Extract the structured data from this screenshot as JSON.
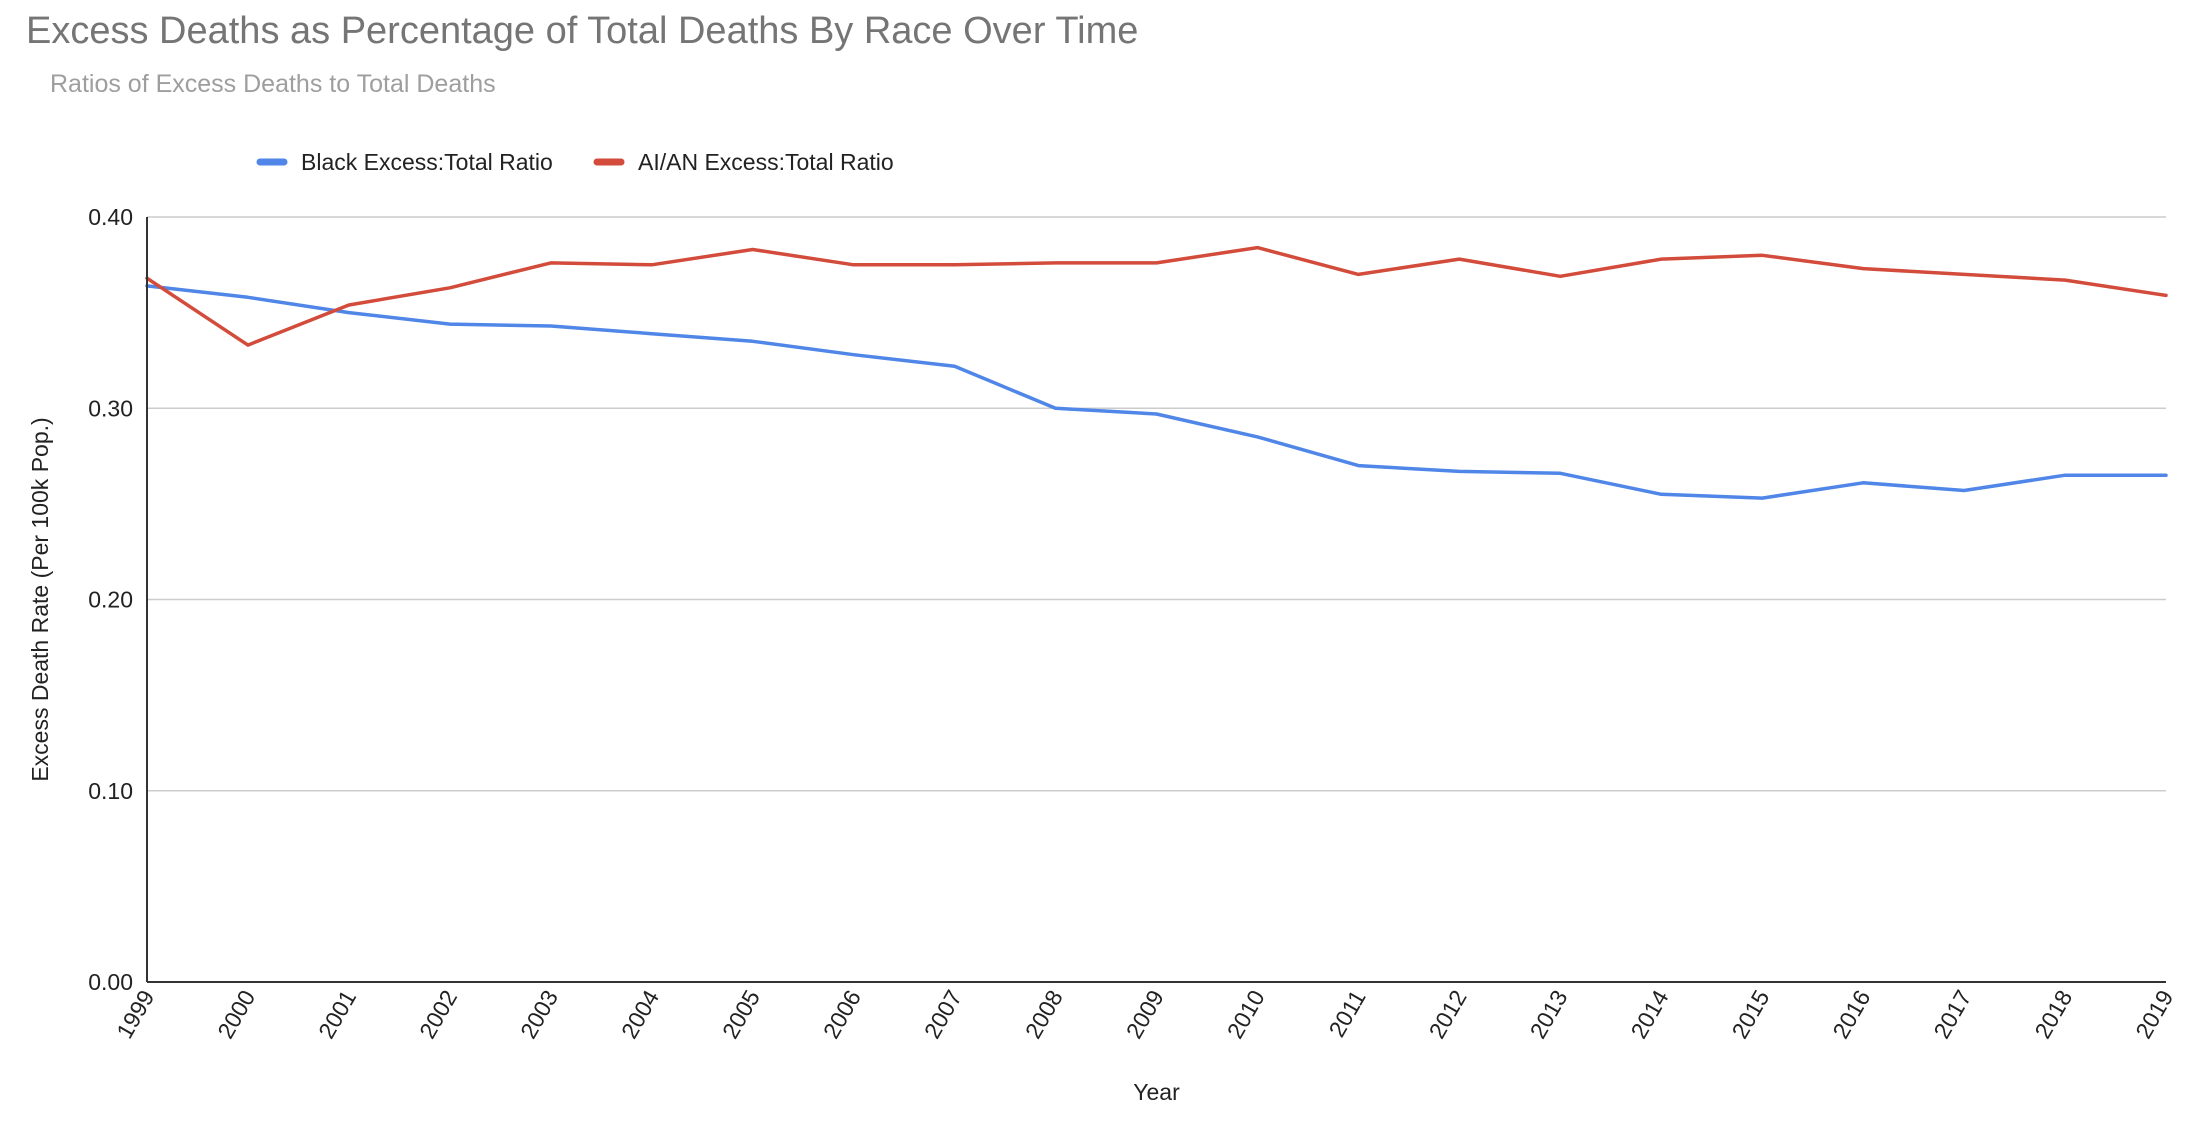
{
  "chart_data": {
    "type": "line",
    "title": "Excess Deaths as Percentage of Total Deaths By Race Over Time",
    "subtitle": "Ratios of Excess Deaths to Total Deaths",
    "xlabel": "Year",
    "ylabel": "Excess Death Rate (Per 100k Pop.)",
    "ylim": [
      0,
      0.4
    ],
    "yticks": [
      "0.00",
      "0.10",
      "0.20",
      "0.30",
      "0.40"
    ],
    "grid": true,
    "legend_position": "top-left",
    "categories": [
      "1999",
      "2000",
      "2001",
      "2002",
      "2003",
      "2004",
      "2005",
      "2006",
      "2007",
      "2008",
      "2009",
      "2010",
      "2011",
      "2012",
      "2013",
      "2014",
      "2015",
      "2016",
      "2017",
      "2018",
      "2019"
    ],
    "series": [
      {
        "name": "Black Excess:Total Ratio",
        "color": "#4f86e8",
        "values": [
          0.364,
          0.358,
          0.35,
          0.344,
          0.343,
          0.339,
          0.335,
          0.328,
          0.322,
          0.3,
          0.297,
          0.285,
          0.27,
          0.267,
          0.266,
          0.255,
          0.253,
          0.261,
          0.257,
          0.265,
          0.265
        ]
      },
      {
        "name": "AI/AN Excess:Total Ratio",
        "color": "#d34b3b",
        "values": [
          0.368,
          0.333,
          0.354,
          0.363,
          0.376,
          0.375,
          0.383,
          0.375,
          0.375,
          0.376,
          0.376,
          0.384,
          0.37,
          0.378,
          0.369,
          0.378,
          0.38,
          0.373,
          0.37,
          0.367,
          0.359
        ]
      }
    ]
  }
}
